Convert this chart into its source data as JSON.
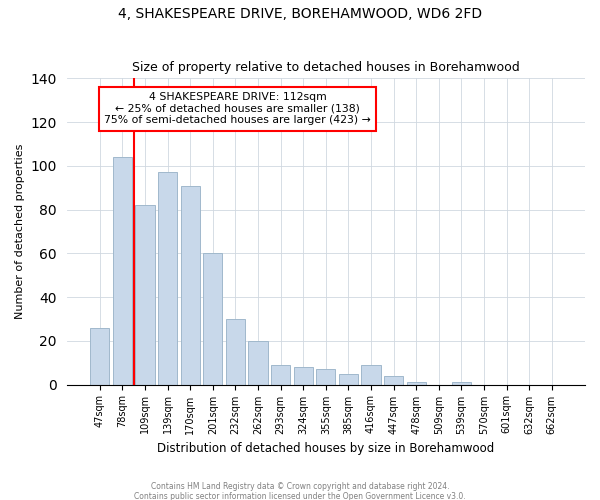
{
  "title": "4, SHAKESPEARE DRIVE, BOREHAMWOOD, WD6 2FD",
  "subtitle": "Size of property relative to detached houses in Borehamwood",
  "xlabel": "Distribution of detached houses by size in Borehamwood",
  "ylabel": "Number of detached properties",
  "bar_labels": [
    "47sqm",
    "78sqm",
    "109sqm",
    "139sqm",
    "170sqm",
    "201sqm",
    "232sqm",
    "262sqm",
    "293sqm",
    "324sqm",
    "355sqm",
    "385sqm",
    "416sqm",
    "447sqm",
    "478sqm",
    "509sqm",
    "539sqm",
    "570sqm",
    "601sqm",
    "632sqm",
    "662sqm"
  ],
  "bar_heights": [
    26,
    104,
    82,
    97,
    91,
    60,
    30,
    20,
    9,
    8,
    7,
    5,
    9,
    4,
    1,
    0,
    1,
    0,
    0,
    0,
    0
  ],
  "bar_color": "#c8d8ea",
  "bar_edge_color": "#a0b8cc",
  "vline_x": 1.5,
  "vline_color": "red",
  "annotation_title": "4 SHAKESPEARE DRIVE: 112sqm",
  "annotation_line1": "← 25% of detached houses are smaller (138)",
  "annotation_line2": "75% of semi-detached houses are larger (423) →",
  "annotation_box_color": "white",
  "annotation_box_edge": "red",
  "ylim": [
    0,
    140
  ],
  "yticks": [
    0,
    20,
    40,
    60,
    80,
    100,
    120,
    140
  ],
  "footer1": "Contains HM Land Registry data © Crown copyright and database right 2024.",
  "footer2": "Contains public sector information licensed under the Open Government Licence v3.0."
}
